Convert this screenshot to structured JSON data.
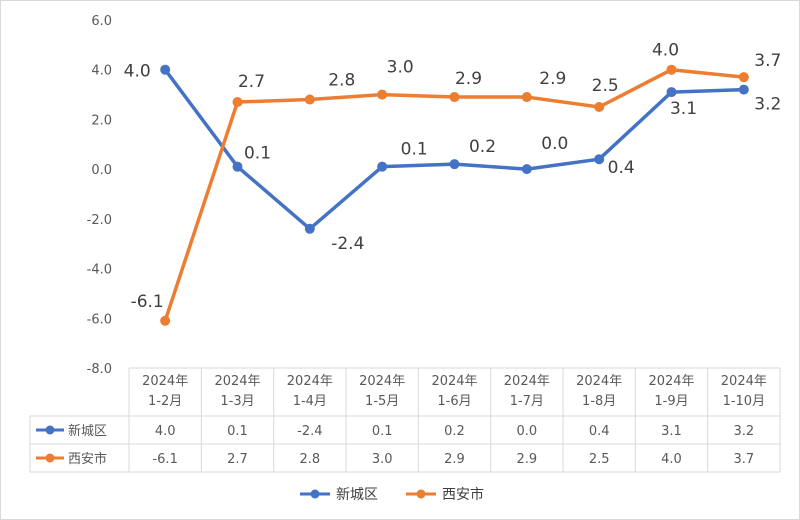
{
  "chart_data": {
    "type": "line",
    "title": "",
    "xlabel": "",
    "ylabel": "",
    "ylim": [
      -8.0,
      6.0
    ],
    "yticks": [
      "6.0",
      "4.0",
      "2.0",
      "0.0",
      "-2.0",
      "-4.0",
      "-6.0",
      "-8.0"
    ],
    "ytick_values": [
      6,
      4,
      2,
      0,
      -2,
      -4,
      -6,
      -8
    ],
    "grid": false,
    "legend_position": "bottom",
    "categories": [
      [
        "2024年",
        "1-2月"
      ],
      [
        "2024年",
        "1-3月"
      ],
      [
        "2024年",
        "1-4月"
      ],
      [
        "2024年",
        "1-5月"
      ],
      [
        "2024年",
        "1-6月"
      ],
      [
        "2024年",
        "1-7月"
      ],
      [
        "2024年",
        "1-8月"
      ],
      [
        "2024年",
        "1-9月"
      ],
      [
        "2024年",
        "1-10月"
      ]
    ],
    "series": [
      {
        "name": "新城区",
        "color": "#4472C4",
        "values": [
          4.0,
          0.1,
          -2.4,
          0.1,
          0.2,
          0.0,
          0.4,
          3.1,
          3.2
        ],
        "labels": [
          "4.0",
          "0.1",
          "-2.4",
          "0.1",
          "0.2",
          "0.0",
          "0.4",
          "3.1",
          "3.2"
        ]
      },
      {
        "name": "西安市",
        "color": "#ED7D31",
        "values": [
          -6.1,
          2.7,
          2.8,
          3.0,
          2.9,
          2.9,
          2.5,
          4.0,
          3.7
        ],
        "labels": [
          "-6.1",
          "2.7",
          "2.8",
          "3.0",
          "2.9",
          "2.9",
          "2.5",
          "4.0",
          "3.7"
        ]
      }
    ]
  }
}
